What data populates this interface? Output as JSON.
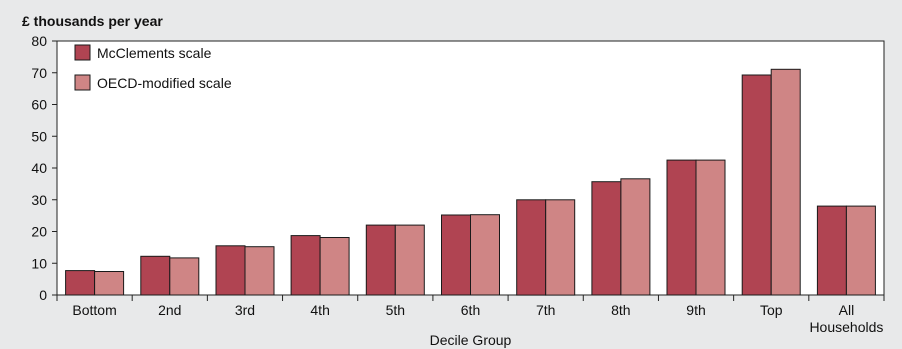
{
  "chart_data": {
    "type": "bar",
    "title": "£ thousands per year",
    "xlabel": "Decile Group",
    "ylabel": "",
    "categories": [
      "Bottom",
      "2nd",
      "3rd",
      "4th",
      "5th",
      "6th",
      "7th",
      "8th",
      "9th",
      "Top",
      "All Households"
    ],
    "category_lines": [
      [
        "Bottom"
      ],
      [
        "2nd"
      ],
      [
        "3rd"
      ],
      [
        "4th"
      ],
      [
        "5th"
      ],
      [
        "6th"
      ],
      [
        "7th"
      ],
      [
        "8th"
      ],
      [
        "9th"
      ],
      [
        "Top"
      ],
      [
        "All",
        "Households"
      ]
    ],
    "series": [
      {
        "name": "McClements scale",
        "color": "#b04452",
        "values": [
          7.7,
          12.2,
          15.5,
          18.7,
          22.0,
          25.2,
          30.0,
          35.7,
          42.5,
          69.3,
          28.0
        ]
      },
      {
        "name": "OECD-modified scale",
        "color": "#cf8585",
        "values": [
          7.4,
          11.7,
          15.2,
          18.1,
          22.0,
          25.3,
          30.0,
          36.6,
          42.5,
          71.1,
          28.0
        ]
      }
    ],
    "ylim": [
      0,
      80
    ],
    "yticks": [
      0,
      10,
      20,
      30,
      40,
      50,
      60,
      70,
      80
    ],
    "grid": false,
    "legend_position": "top-left",
    "background_color": "#e8e9ea",
    "plot_background_color": "#ffffff"
  }
}
